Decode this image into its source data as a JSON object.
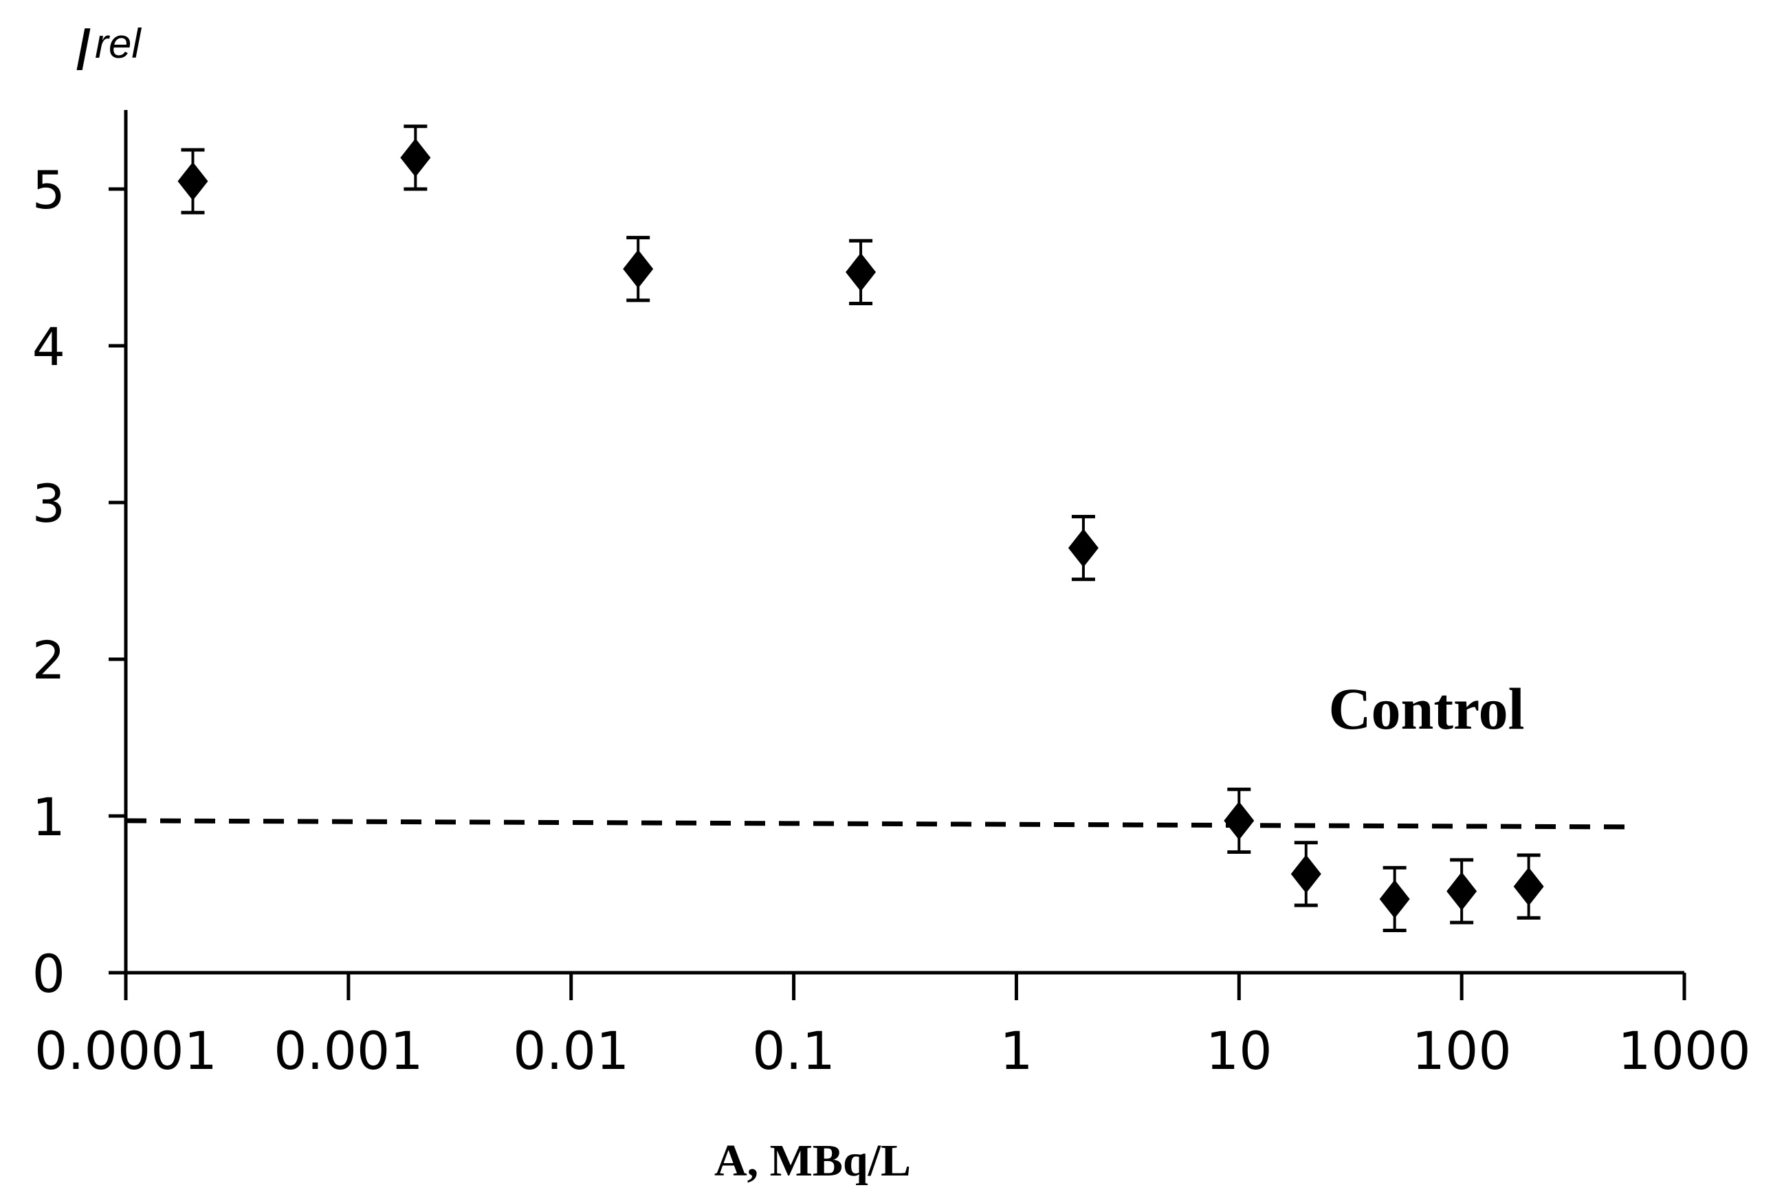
{
  "chart_data": {
    "type": "scatter",
    "title": "",
    "xlabel": "A, MBq/L",
    "ylabel": "I",
    "ylabel_superscript": "rel",
    "xscale": "log",
    "xlim": [
      0.0001,
      1000
    ],
    "ylim": [
      0,
      5.5
    ],
    "x_ticks": [
      0.0001,
      0.001,
      0.01,
      0.1,
      1,
      10,
      100,
      1000
    ],
    "x_tick_labels": [
      "0.0001",
      "0.001",
      "0.01",
      "0.1",
      "1",
      "10",
      "100",
      "1000"
    ],
    "y_ticks": [
      0,
      1,
      2,
      3,
      4,
      5
    ],
    "y_tick_labels": [
      "0",
      "1",
      "2",
      "3",
      "4",
      "5"
    ],
    "grid": false,
    "series": [
      {
        "name": "Irel",
        "marker": "diamond",
        "x": [
          0.0002,
          0.002,
          0.02,
          0.2,
          2,
          10,
          20,
          50,
          100,
          200
        ],
        "y": [
          5.05,
          5.2,
          4.49,
          4.47,
          2.71,
          0.97,
          0.63,
          0.47,
          0.52,
          0.55
        ],
        "err": [
          0.2,
          0.2,
          0.2,
          0.2,
          0.2,
          0.2,
          0.2,
          0.2,
          0.2,
          0.2
        ]
      }
    ],
    "reference_line": {
      "label": "Control",
      "style": "dashed",
      "x": [
        0.0001,
        600
      ],
      "y": [
        0.97,
        0.93
      ]
    }
  }
}
